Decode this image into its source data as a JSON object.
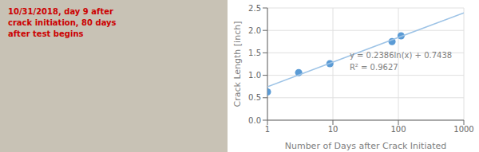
{
  "chart_data": {
    "type": "scatter",
    "xlabel": "Number of Days after Crack Initiated",
    "ylabel": "Crack Length [inch]",
    "log": "x",
    "grid": true,
    "xlim": [
      1,
      1000
    ],
    "xticks": [
      1,
      10,
      100,
      1000
    ],
    "ylim": [
      0.0,
      2.5
    ],
    "yticks": [
      {
        "value": 0.0,
        "label": "0.0"
      },
      0.5,
      {
        "value": 1.0,
        "label": "1.0"
      },
      1.5,
      {
        "value": 2.0,
        "label": "2.0"
      },
      2.5
    ],
    "series": [
      {
        "type": "scatter",
        "color": "#5b9bd5",
        "x": [
          1,
          3,
          9,
          80,
          110
        ],
        "values": [
          0.63,
          1.06,
          1.26,
          1.75,
          1.88
        ]
      },
      {
        "type": "line",
        "color": "#9dc3e6",
        "x": [
          1,
          1000
        ],
        "values": [
          0.7438,
          2.39198041
        ]
      }
    ],
    "annotations": [
      {
        "text": "y = 0.2386ln(x) + 0.7438\nR² = 0.9627",
        "x": 18,
        "y": 1.12,
        "color": "#808080"
      },
      {
        "text": "10/31/2018, day 9 after\ncrack initiation, 80 days\nafter test begins",
        "color": "#cc0000"
      }
    ]
  }
}
